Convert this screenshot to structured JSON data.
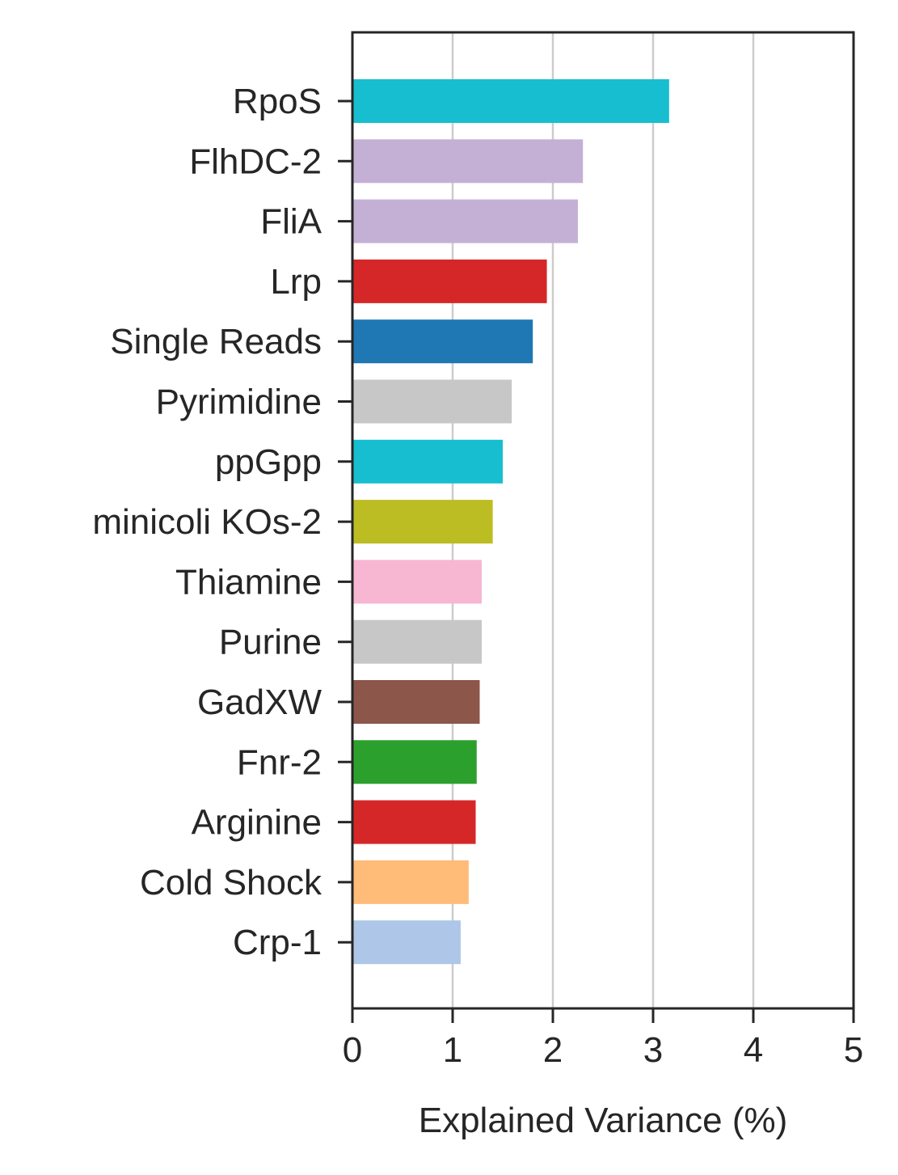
{
  "chart_data": {
    "type": "bar",
    "orientation": "horizontal",
    "categories": [
      "RpoS",
      "FlhDC-2",
      "FliA",
      "Lrp",
      "Single Reads",
      "Pyrimidine",
      "ppGpp",
      "minicoli KOs-2",
      "Thiamine",
      "Purine",
      "GadXW",
      "Fnr-2",
      "Arginine",
      "Cold Shock",
      "Crp-1"
    ],
    "values": [
      3.16,
      2.3,
      2.25,
      1.94,
      1.8,
      1.59,
      1.5,
      1.4,
      1.29,
      1.29,
      1.27,
      1.24,
      1.23,
      1.16,
      1.08
    ],
    "colors": [
      "#17becf",
      "#c5b0d5",
      "#c5b0d5",
      "#d62728",
      "#1f77b4",
      "#c7c7c7",
      "#17becf",
      "#bcbd22",
      "#f7b6d2",
      "#c7c7c7",
      "#8c564b",
      "#2ca02c",
      "#d62728",
      "#ffbb78",
      "#aec7e8"
    ],
    "xlabel": "Explained Variance (%)",
    "ylabel": "",
    "xlim": [
      0,
      5
    ],
    "xticks": [
      "0",
      "1",
      "2",
      "3",
      "4",
      "5"
    ],
    "grid": "vertical",
    "legend": "none"
  }
}
